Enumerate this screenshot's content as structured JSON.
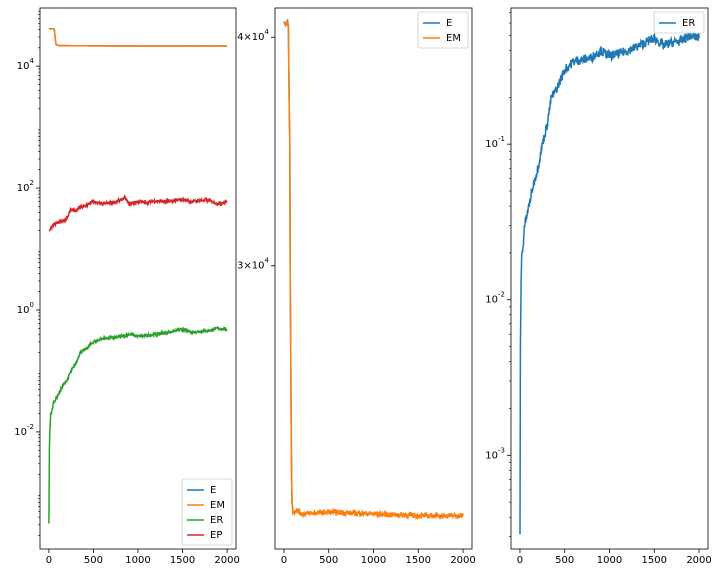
{
  "colors": {
    "E": "#1f77b4",
    "EM": "#ff7f0e",
    "ER": "#2ca02c",
    "EP": "#d62728",
    "ER_right": "#1f77b4"
  },
  "chart_data": [
    {
      "type": "line",
      "title": "",
      "xlabel": "",
      "ylabel": "",
      "yscale": "log",
      "xlim": [
        -100,
        2100
      ],
      "ylim": [
        0.00012,
        90000
      ],
      "xticks": [
        0,
        500,
        1000,
        1500,
        2000
      ],
      "xtick_labels": [
        "0",
        "500",
        "1000",
        "1500",
        "2000"
      ],
      "yticks": [
        0.01,
        1,
        100,
        10000
      ],
      "ytick_labels": [
        "10^-2",
        "10^0",
        "10^2",
        "10^4"
      ],
      "legend": {
        "position": "lower-right",
        "entries": [
          "E",
          "EM",
          "ER",
          "EP"
        ]
      },
      "series": [
        {
          "name": "E",
          "color": "#1f77b4",
          "x": [
            0,
            40,
            60,
            70,
            80,
            100,
            500,
            1000,
            1500,
            2000
          ],
          "y": [
            41000,
            41000,
            40500,
            30000,
            23000,
            21800,
            21500,
            21400,
            21400,
            21400
          ]
        },
        {
          "name": "EM",
          "color": "#ff7f0e",
          "x": [
            0,
            40,
            60,
            70,
            80,
            100,
            500,
            1000,
            1500,
            2000
          ],
          "y": [
            41000,
            41000,
            40500,
            30000,
            23000,
            21800,
            21500,
            21400,
            21400,
            21400
          ]
        },
        {
          "name": "ER",
          "color": "#2ca02c",
          "x": [
            0,
            5,
            10,
            20,
            30,
            50,
            80,
            100,
            150,
            200,
            250,
            300,
            350,
            400,
            500,
            600,
            700,
            800,
            900,
            1000,
            1100,
            1200,
            1300,
            1400,
            1500,
            1600,
            1700,
            1800,
            1900,
            2000
          ],
          "y": [
            0.0003,
            0.005,
            0.01,
            0.02,
            0.02,
            0.03,
            0.035,
            0.04,
            0.055,
            0.07,
            0.1,
            0.13,
            0.2,
            0.22,
            0.3,
            0.34,
            0.35,
            0.36,
            0.4,
            0.37,
            0.38,
            0.4,
            0.42,
            0.45,
            0.48,
            0.43,
            0.45,
            0.46,
            0.5,
            0.48
          ]
        },
        {
          "name": "EP",
          "color": "#d62728",
          "x": [
            0,
            50,
            100,
            150,
            200,
            250,
            300,
            350,
            400,
            500,
            600,
            700,
            800,
            850,
            900,
            1000,
            1100,
            1200,
            1300,
            1400,
            1500,
            1600,
            1700,
            1800,
            1900,
            2000
          ],
          "y": [
            20,
            25,
            27,
            28,
            32,
            45,
            42,
            48,
            50,
            60,
            55,
            58,
            62,
            70,
            55,
            60,
            58,
            62,
            60,
            62,
            65,
            60,
            63,
            62,
            55,
            60
          ]
        }
      ]
    },
    {
      "type": "line",
      "title": "",
      "xlabel": "",
      "ylabel": "",
      "yscale": "log",
      "xlim": [
        -100,
        2100
      ],
      "ylim": [
        21000,
        41500
      ],
      "xticks": [
        0,
        500,
        1000,
        1500,
        2000
      ],
      "xtick_labels": [
        "0",
        "500",
        "1000",
        "1500",
        "2000"
      ],
      "yticks": [
        40000,
        30000
      ],
      "ytick_labels": [
        "4×10^4",
        "3×10^4"
      ],
      "legend": {
        "position": "top-right",
        "entries": [
          "E",
          "EM"
        ]
      },
      "series": [
        {
          "name": "E",
          "color": "#1f77b4",
          "x": [
            0,
            20,
            40,
            50,
            55,
            60,
            65,
            70,
            75,
            80,
            85,
            90,
            100,
            150,
            200,
            500,
            1000,
            1500,
            2000
          ],
          "y": [
            40800,
            40600,
            40900,
            40500,
            38000,
            36500,
            35000,
            30000,
            27000,
            25000,
            23000,
            22300,
            22000,
            22050,
            21950,
            22000,
            21950,
            21900,
            21900
          ]
        },
        {
          "name": "EM",
          "color": "#ff7f0e",
          "x": [
            0,
            20,
            40,
            50,
            55,
            60,
            65,
            70,
            75,
            80,
            85,
            90,
            100,
            150,
            200,
            500,
            1000,
            1500,
            2000
          ],
          "y": [
            40800,
            40600,
            40900,
            40500,
            38000,
            36500,
            35000,
            30000,
            27000,
            25000,
            23000,
            22300,
            22000,
            22050,
            21950,
            22000,
            21950,
            21900,
            21900
          ]
        }
      ]
    },
    {
      "type": "line",
      "title": "",
      "xlabel": "",
      "ylabel": "",
      "yscale": "log",
      "xlim": [
        -100,
        2100
      ],
      "ylim": [
        0.00025,
        0.75
      ],
      "xticks": [
        0,
        500,
        1000,
        1500,
        2000
      ],
      "xtick_labels": [
        "0",
        "500",
        "1000",
        "1500",
        "2000"
      ],
      "yticks": [
        0.001,
        0.01,
        0.1
      ],
      "ytick_labels": [
        "10^-3",
        "10^-2",
        "10^-1"
      ],
      "legend": {
        "position": "top-right",
        "entries": [
          "ER"
        ]
      },
      "series": [
        {
          "name": "ER",
          "color": "#1f77b4",
          "x": [
            0,
            5,
            10,
            20,
            30,
            50,
            80,
            100,
            150,
            200,
            250,
            300,
            350,
            400,
            500,
            600,
            700,
            800,
            900,
            1000,
            1100,
            1200,
            1300,
            1400,
            1500,
            1600,
            1700,
            1800,
            1900,
            2000
          ],
          "y": [
            0.0003,
            0.005,
            0.01,
            0.02,
            0.02,
            0.03,
            0.035,
            0.04,
            0.055,
            0.07,
            0.1,
            0.13,
            0.2,
            0.22,
            0.3,
            0.34,
            0.35,
            0.36,
            0.4,
            0.37,
            0.38,
            0.4,
            0.42,
            0.45,
            0.48,
            0.43,
            0.45,
            0.46,
            0.5,
            0.48
          ]
        }
      ]
    }
  ]
}
